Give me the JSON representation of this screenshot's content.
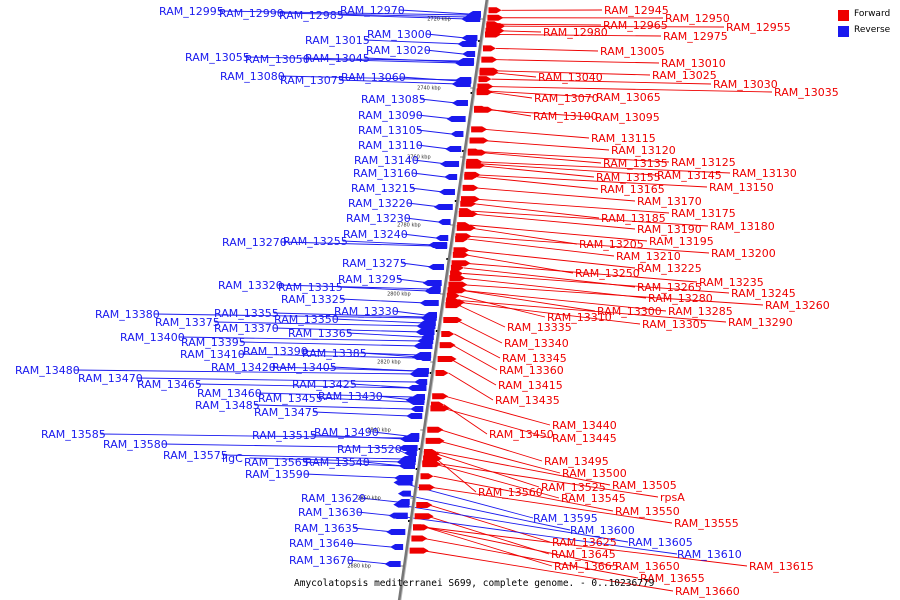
{
  "colors": {
    "forward": "#ee0000",
    "reverse": "#1a1aee",
    "axis": "#666666"
  },
  "legend": {
    "forward": "Forward",
    "reverse": "Reverse"
  },
  "caption": "Amycolatopsis mediterranei S699, complete genome. - 0..10236779",
  "ticks": [
    "2720 kbp",
    "2740 kbp",
    "2760 kbp",
    "2780 kbp",
    "2800 kbp",
    "2820 kbp",
    "2840 kbp",
    "2860 kbp",
    "2880 kbp"
  ],
  "forward_genes": [
    "RAM_12945",
    "RAM_12950",
    "RAM_12955",
    "RAM_12965",
    "RAM_12975",
    "RAM_12980",
    "RAM_13005",
    "RAM_13010",
    "RAM_13025",
    "RAM_13030",
    "RAM_13035",
    "RAM_13040",
    "RAM_13065",
    "RAM_13070",
    "RAM_13095",
    "RAM_13100",
    "RAM_13115",
    "RAM_13120",
    "RAM_13125",
    "RAM_13130",
    "RAM_13135",
    "RAM_13145",
    "RAM_13150",
    "RAM_13155",
    "RAM_13165",
    "RAM_13170",
    "RAM_13175",
    "RAM_13180",
    "RAM_13185",
    "RAM_13190",
    "RAM_13195",
    "RAM_13200",
    "RAM_13205",
    "RAM_13210",
    "RAM_13225",
    "RAM_13235",
    "RAM_13245",
    "RAM_13250",
    "RAM_13260",
    "RAM_13265",
    "RAM_13280",
    "RAM_13285",
    "RAM_13290",
    "RAM_13300",
    "RAM_13305",
    "RAM_13310",
    "RAM_13335",
    "RAM_13340",
    "RAM_13345",
    "RAM_13360",
    "RAM_13415",
    "RAM_13435",
    "RAM_13440",
    "RAM_13445",
    "RAM_13450",
    "RAM_13495",
    "RAM_13500",
    "RAM_13505",
    "RAM_13525",
    "RAM_13545",
    "RAM_13550",
    "RAM_13555",
    "RAM_13560",
    "rpsA",
    "RAM_13625",
    "RAM_13645",
    "RAM_13650",
    "RAM_13655",
    "RAM_13660",
    "RAM_13665",
    "RAM_13615"
  ],
  "reverse_genes": [
    "RAM_12995",
    "RAM_12990",
    "RAM_12985",
    "RAM_12970",
    "RAM_13000",
    "RAM_13015",
    "RAM_13020",
    "RAM_13055",
    "RAM_13050",
    "RAM_13045",
    "RAM_13080",
    "RAM_13075",
    "RAM_13060",
    "RAM_13085",
    "RAM_13090",
    "RAM_13105",
    "RAM_13110",
    "RAM_13140",
    "RAM_13160",
    "RAM_13215",
    "RAM_13220",
    "RAM_13230",
    "RAM_13270",
    "RAM_13255",
    "RAM_13240",
    "RAM_13275",
    "RAM_13295",
    "RAM_13320",
    "RAM_13315",
    "RAM_13325",
    "RAM_13330",
    "RAM_13380",
    "RAM_13375",
    "RAM_13355",
    "RAM_13350",
    "RAM_13370",
    "RAM_13365",
    "RAM_13400",
    "RAM_13395",
    "RAM_13410",
    "RAM_13390",
    "RAM_13385",
    "RAM_13420",
    "RAM_13405",
    "RAM_13480",
    "RAM_13470",
    "RAM_13465",
    "RAM_13425",
    "RAM_13460",
    "RAM_13455",
    "RAM_13430",
    "RAM_13485",
    "RAM_13475",
    "RAM_13515",
    "RAM_13490",
    "RAM_13585",
    "RAM_13580",
    "RAM_13520",
    "RAM_13575",
    "ligC",
    "RAM_13565",
    "RAM_13540",
    "RAM_13590",
    "RAM_13620",
    "RAM_13630",
    "RAM_13635",
    "RAM_13640",
    "RAM_13670",
    "RAM_13595",
    "RAM_13600",
    "RAM_13605",
    "RAM_13610"
  ]
}
